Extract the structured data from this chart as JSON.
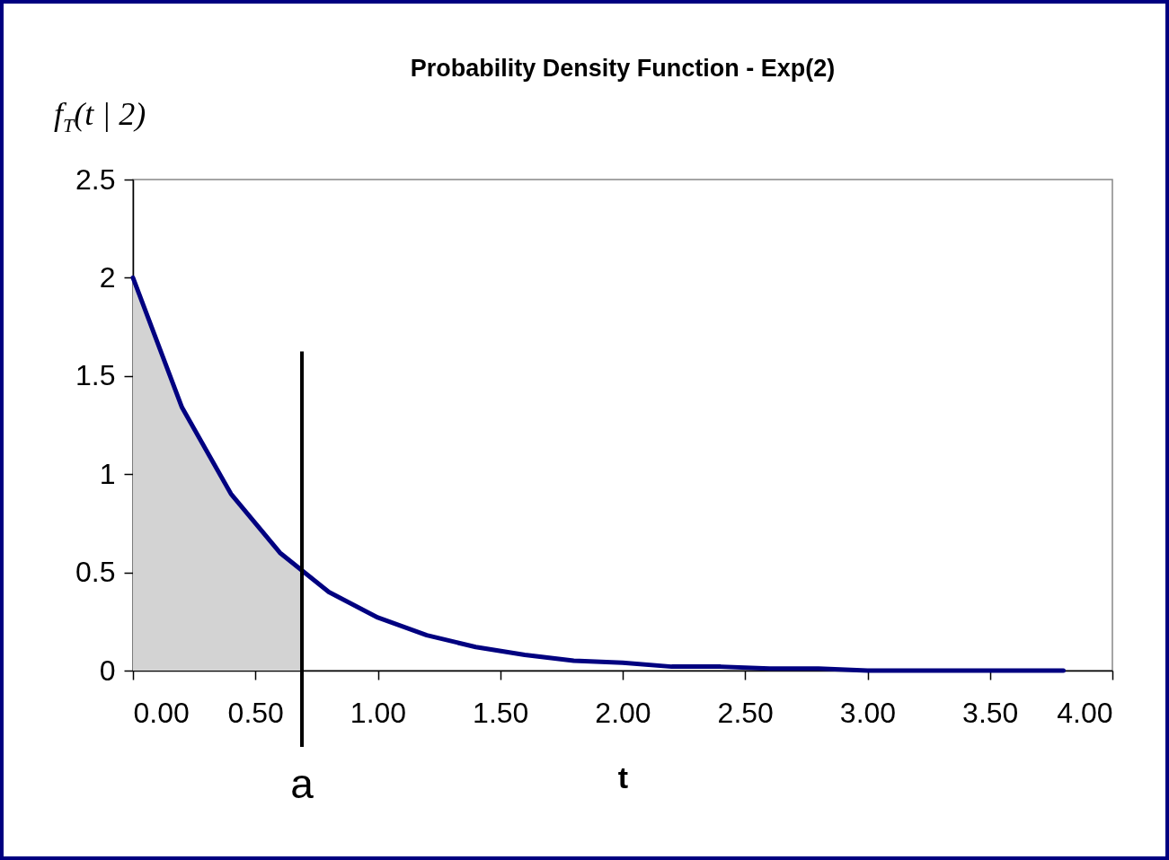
{
  "chart_data": {
    "type": "line",
    "title": "Probability Density Function - Exp(2)",
    "xlabel": "t",
    "ylabel": "f$_{T}$(t | 2)",
    "x": [
      0,
      0.2,
      0.4,
      0.6,
      0.8,
      1.0,
      1.2,
      1.4,
      1.6,
      1.8,
      2.0,
      2.2,
      2.4,
      2.6,
      2.8,
      3.0,
      3.2,
      3.4,
      3.6,
      3.8
    ],
    "series": [
      {
        "type": "area",
        "color": "#d3d3d3",
        "x": [
          0,
          0.2,
          0.4,
          0.6,
          0.69
        ],
        "values": [
          2,
          1.34,
          0.9,
          0.6,
          0.5
        ]
      },
      {
        "type": "line",
        "color": "#000080",
        "values": [
          2,
          1.34,
          0.9,
          0.6,
          0.4,
          0.27,
          0.18,
          0.12,
          0.08,
          0.05,
          0.04,
          0.02,
          0.02,
          0.01,
          0.01,
          0,
          0,
          0,
          0,
          0
        ]
      }
    ],
    "xlim": [
      0,
      4
    ],
    "xticks": [
      {
        "value": 0,
        "label": "0.00"
      },
      {
        "value": 0.5,
        "label": "0.50"
      },
      {
        "value": 1,
        "label": "1.00"
      },
      {
        "value": 1.5,
        "label": "1.50"
      },
      {
        "value": 2,
        "label": "2.00"
      },
      {
        "value": 2.5,
        "label": "2.50"
      },
      {
        "value": 3,
        "label": "3.00"
      },
      {
        "value": 3.5,
        "label": "3.50"
      },
      {
        "value": 4,
        "label": "4.00"
      }
    ],
    "ylim": [
      0,
      2.5
    ],
    "yticks": [
      0,
      0.5,
      1,
      1.5,
      2,
      2.5
    ],
    "ref_lines": [
      {
        "axis": "x",
        "value": 0.69,
        "label": "a",
        "color": "#000000"
      }
    ],
    "grid": false,
    "marker": "none"
  }
}
